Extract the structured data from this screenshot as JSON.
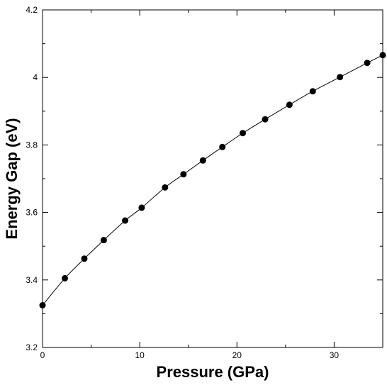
{
  "chart_data": {
    "type": "line",
    "title": "",
    "xlabel": "Pressure (GPa)",
    "ylabel": "Energy Gap (eV)",
    "xlim": [
      0,
      35
    ],
    "ylim": [
      3.2,
      4.2
    ],
    "x_ticks": [
      0,
      10,
      20,
      30
    ],
    "x_tick_labels": [
      "0",
      "10",
      "20",
      "30"
    ],
    "y_ticks": [
      3.2,
      3.4,
      3.6,
      3.8,
      4.0,
      4.2
    ],
    "y_tick_labels": [
      "3.2",
      "3.4",
      "3.6",
      "3.8",
      "4",
      "4.2"
    ],
    "grid": false,
    "legend": "none",
    "series": [
      {
        "marker": "filled-circle",
        "color": "#000000",
        "x": [
          0.0,
          2.3,
          4.3,
          6.3,
          8.5,
          10.2,
          12.6,
          14.5,
          16.5,
          18.5,
          20.6,
          22.9,
          25.4,
          27.8,
          30.6,
          33.4,
          35.0
        ],
        "y": [
          3.325,
          3.405,
          3.463,
          3.518,
          3.576,
          3.614,
          3.674,
          3.713,
          3.754,
          3.794,
          3.835,
          3.876,
          3.919,
          3.959,
          4.001,
          4.043,
          4.066
        ]
      }
    ]
  }
}
